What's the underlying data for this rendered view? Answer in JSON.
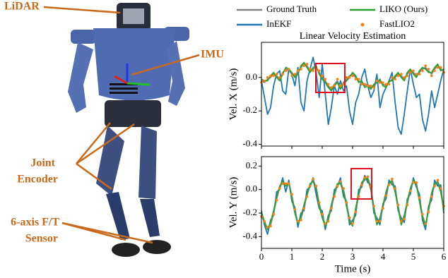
{
  "robot": {
    "lidar": "LiDAR",
    "imu": "IMU",
    "joint_encoder": [
      "Joint",
      "Encoder"
    ],
    "ft_sensor": [
      "6-axis F/T",
      "Sensor"
    ]
  },
  "chart_data": [
    {
      "type": "line",
      "title": "Linear Velocity Estimation",
      "ylabel": "Vel. X (m/s)",
      "xtick_labels": false,
      "x": [
        0,
        0.1,
        0.2,
        0.3,
        0.4,
        0.5,
        0.6,
        0.7,
        0.8,
        0.9,
        1,
        1.1,
        1.2,
        1.3,
        1.4,
        1.5,
        1.6,
        1.7,
        1.8,
        1.9,
        2,
        2.1,
        2.2,
        2.3,
        2.4,
        2.5,
        2.6,
        2.7,
        2.8,
        2.9,
        3,
        3.1,
        3.2,
        3.3,
        3.4,
        3.5,
        3.6,
        3.7,
        3.8,
        3.9,
        4,
        4.1,
        4.2,
        4.3,
        4.4,
        4.5,
        4.6,
        4.7,
        4.8,
        4.9,
        5,
        5.1,
        5.2,
        5.3,
        5.4,
        5.5,
        5.6,
        5.7,
        5.8,
        5.9,
        6
      ],
      "xlim": [
        0,
        6
      ],
      "xticks": [
        0,
        1,
        2,
        3,
        4,
        5,
        6
      ],
      "ylim": [
        -0.41,
        0.21
      ],
      "yticks": [
        -0.4,
        -0.2,
        {
          "value": 0,
          "label": "0.0"
        }
      ],
      "series": [
        {
          "name": "Ground Truth",
          "color": "#808080",
          "values": [
            -0.02,
            -0.03,
            -0.01,
            0.0,
            0.02,
            0.01,
            -0.01,
            0.03,
            0.05,
            0.04,
            0.02,
            0.01,
            0.03,
            0.06,
            0.08,
            0.07,
            0.04,
            0.05,
            0.06,
            0.03,
            0.0,
            -0.02,
            -0.05,
            -0.07,
            -0.04,
            -0.02,
            -0.06,
            -0.03,
            -0.01,
            0.01,
            0.02,
            0.0,
            -0.02,
            -0.03,
            -0.05,
            -0.04,
            -0.06,
            -0.05,
            -0.03,
            -0.02,
            -0.04,
            -0.05,
            -0.03,
            -0.01,
            0.0,
            0.02,
            0.01,
            -0.01,
            0.02,
            0.04,
            0.03,
            0.01,
            0.03,
            0.05,
            0.06,
            0.04,
            0.02,
            0.05,
            0.07,
            0.05,
            0.04
          ]
        },
        {
          "name": "InEKF",
          "color": "#1f77b4",
          "values": [
            -0.02,
            -0.12,
            -0.22,
            -0.18,
            -0.05,
            0.02,
            0.04,
            -0.08,
            -0.1,
            0.05,
            0.02,
            -0.05,
            0.06,
            -0.15,
            -0.2,
            -0.02,
            0.05,
            0.12,
            0.03,
            -0.12,
            0.08,
            -0.1,
            -0.28,
            -0.18,
            -0.05,
            -0.1,
            -0.02,
            -0.08,
            -0.05,
            -0.2,
            -0.28,
            -0.15,
            -0.1,
            0.0,
            0.05,
            -0.05,
            -0.12,
            -0.08,
            0.02,
            -0.18,
            -0.1,
            -0.06,
            -0.02,
            0.03,
            -0.15,
            -0.3,
            -0.34,
            -0.22,
            -0.08,
            0.05,
            -0.04,
            -0.12,
            -0.1,
            -0.25,
            -0.32,
            -0.22,
            -0.08,
            -0.18,
            -0.1,
            -0.02,
            0.05
          ]
        },
        {
          "name": "LIKO (Ours)",
          "color": "#2ca02c",
          "values": [
            -0.01,
            -0.02,
            -0.02,
            0.01,
            0.03,
            0.0,
            -0.02,
            0.02,
            0.06,
            0.05,
            0.03,
            0.0,
            0.02,
            0.07,
            0.09,
            0.06,
            0.03,
            0.06,
            0.07,
            0.02,
            -0.01,
            -0.03,
            -0.06,
            -0.08,
            -0.05,
            -0.03,
            -0.07,
            -0.04,
            -0.02,
            0.0,
            0.03,
            0.01,
            -0.03,
            -0.02,
            -0.06,
            -0.05,
            -0.07,
            -0.04,
            -0.03,
            -0.01,
            -0.05,
            -0.06,
            -0.02,
            -0.02,
            0.01,
            0.03,
            0.0,
            -0.02,
            0.03,
            0.05,
            0.02,
            0.0,
            0.04,
            0.06,
            0.05,
            0.03,
            0.03,
            0.06,
            0.08,
            0.04,
            0.05
          ]
        },
        {
          "name": "FastLIO2",
          "color": "#ff7f0e",
          "style": "markers",
          "values": [
            -0.03,
            -0.02,
            0.0,
            0.01,
            0.01,
            0.02,
            0.0,
            0.02,
            0.04,
            0.05,
            0.01,
            0.02,
            0.04,
            0.05,
            0.07,
            0.08,
            0.05,
            0.04,
            0.05,
            0.04,
            0.01,
            -0.01,
            -0.04,
            -0.06,
            -0.05,
            -0.01,
            -0.05,
            -0.04,
            0.0,
            0.0,
            0.01,
            -0.01,
            -0.01,
            -0.04,
            -0.04,
            -0.05,
            -0.05,
            -0.06,
            -0.02,
            -0.03,
            -0.03,
            -0.04,
            -0.04,
            0.0,
            -0.01,
            0.01,
            0.02,
            0.0,
            0.01,
            0.03,
            0.04,
            0.02,
            0.02,
            0.04,
            0.07,
            0.05,
            0.01,
            0.04,
            0.06,
            0.06,
            0.03
          ]
        }
      ]
    },
    {
      "type": "line",
      "ylabel": "Vel. Y (m/s)",
      "xlabel": "Time (s)",
      "x": [
        0,
        0.1,
        0.2,
        0.3,
        0.4,
        0.5,
        0.6,
        0.7,
        0.8,
        0.9,
        1,
        1.1,
        1.2,
        1.3,
        1.4,
        1.5,
        1.6,
        1.7,
        1.8,
        1.9,
        2,
        2.1,
        2.2,
        2.3,
        2.4,
        2.5,
        2.6,
        2.7,
        2.8,
        2.9,
        3,
        3.1,
        3.2,
        3.3,
        3.4,
        3.5,
        3.6,
        3.7,
        3.8,
        3.9,
        4,
        4.1,
        4.2,
        4.3,
        4.4,
        4.5,
        4.6,
        4.7,
        4.8,
        4.9,
        5,
        5.1,
        5.2,
        5.3,
        5.4,
        5.5,
        5.6,
        5.7,
        5.8,
        5.9,
        6
      ],
      "xlim": [
        0,
        6
      ],
      "xticks": [
        0,
        1,
        2,
        3,
        4,
        5,
        6
      ],
      "ylim": [
        -0.5,
        0.28
      ],
      "yticks": [
        -0.4,
        -0.2,
        {
          "value": 0,
          "label": "0.0"
        },
        0.2
      ],
      "series": [
        {
          "color": "#808080",
          "values": [
            -0.22,
            -0.28,
            -0.33,
            -0.3,
            -0.2,
            -0.08,
            0.02,
            0.06,
            0.04,
            0.06,
            -0.05,
            -0.18,
            -0.28,
            -0.25,
            -0.15,
            -0.05,
            0.04,
            0.08,
            0.02,
            -0.12,
            -0.22,
            -0.3,
            -0.26,
            -0.15,
            -0.05,
            0.04,
            0.06,
            0.0,
            -0.12,
            -0.25,
            -0.3,
            -0.18,
            -0.05,
            0.05,
            0.08,
            0.1,
            0.02,
            -0.15,
            -0.28,
            -0.26,
            -0.15,
            -0.04,
            0.05,
            0.08,
            0.0,
            -0.14,
            -0.28,
            -0.24,
            -0.12,
            0.0,
            0.07,
            0.05,
            -0.08,
            -0.22,
            -0.3,
            -0.18,
            -0.05,
            0.04,
            0.07,
            0.0,
            -0.15
          ]
        },
        {
          "color": "#1f77b4",
          "values": [
            -0.18,
            -0.3,
            -0.38,
            -0.26,
            -0.22,
            -0.02,
            0.0,
            0.1,
            -0.02,
            0.08,
            -0.1,
            -0.15,
            -0.32,
            -0.2,
            -0.18,
            0.0,
            0.02,
            0.1,
            -0.04,
            -0.16,
            -0.18,
            -0.34,
            -0.22,
            -0.18,
            0.0,
            0.02,
            0.1,
            -0.06,
            -0.1,
            -0.3,
            -0.26,
            -0.22,
            0.0,
            0.02,
            0.12,
            0.06,
            0.04,
            -0.2,
            -0.24,
            -0.3,
            -0.12,
            -0.08,
            0.08,
            0.04,
            0.03,
            -0.18,
            -0.24,
            -0.28,
            -0.08,
            -0.04,
            0.1,
            0.02,
            -0.04,
            -0.26,
            -0.34,
            -0.14,
            -0.09,
            0.08,
            0.03,
            0.04,
            -0.2
          ]
        },
        {
          "color": "#2ca02c",
          "values": [
            -0.2,
            -0.27,
            -0.34,
            -0.28,
            -0.18,
            -0.06,
            0.03,
            0.07,
            0.03,
            0.05,
            -0.07,
            -0.2,
            -0.29,
            -0.23,
            -0.13,
            -0.04,
            0.05,
            0.07,
            0.01,
            -0.14,
            -0.24,
            -0.31,
            -0.25,
            -0.13,
            -0.03,
            0.05,
            0.05,
            -0.02,
            -0.14,
            -0.27,
            -0.31,
            -0.16,
            -0.03,
            0.06,
            0.09,
            0.09,
            0.0,
            -0.17,
            -0.3,
            -0.24,
            -0.13,
            -0.02,
            0.06,
            0.07,
            -0.02,
            -0.16,
            -0.3,
            -0.22,
            -0.1,
            0.01,
            0.08,
            0.04,
            -0.1,
            -0.24,
            -0.31,
            -0.16,
            -0.03,
            0.05,
            0.06,
            -0.02,
            -0.17
          ]
        },
        {
          "color": "#ff7f0e",
          "style": "markers",
          "values": [
            -0.23,
            -0.27,
            -0.32,
            -0.31,
            -0.21,
            -0.09,
            0.01,
            0.05,
            0.05,
            0.05,
            -0.04,
            -0.17,
            -0.27,
            -0.26,
            -0.16,
            -0.06,
            0.03,
            0.09,
            0.03,
            -0.11,
            -0.21,
            -0.29,
            -0.27,
            -0.16,
            -0.06,
            0.03,
            0.07,
            0.01,
            -0.11,
            -0.24,
            -0.29,
            -0.19,
            -0.06,
            0.04,
            0.1,
            0.11,
            0.03,
            -0.14,
            -0.27,
            -0.27,
            -0.16,
            -0.05,
            0.04,
            0.09,
            0.01,
            -0.13,
            -0.27,
            -0.25,
            -0.13,
            -0.01,
            0.06,
            0.06,
            -0.07,
            -0.21,
            -0.29,
            -0.19,
            -0.06,
            0.03,
            0.08,
            0.01,
            -0.14
          ]
        }
      ]
    }
  ]
}
